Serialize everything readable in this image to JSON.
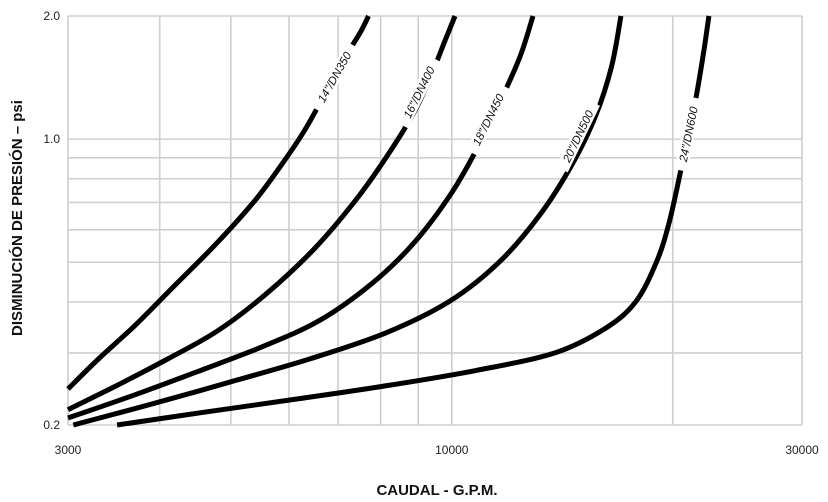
{
  "chart_data": {
    "type": "line",
    "xlabel": "CAUDAL - G.P.M.",
    "ylabel": "DISMINUCIÓN DE PRESIÓN – psi",
    "x_scale": "log",
    "y_scale": "log",
    "xlim": [
      3000,
      30000
    ],
    "ylim": [
      0.2,
      2.0
    ],
    "x_tick_labels": [
      "3000",
      "10000",
      "30000"
    ],
    "x_tick_values": [
      3000,
      10000,
      30000
    ],
    "y_tick_labels": [
      "0.2",
      "1.0",
      "2.0"
    ],
    "y_tick_values": [
      0.2,
      1.0,
      2.0
    ],
    "grid": true,
    "x_grid_values": [
      3000,
      4000,
      5000,
      6000,
      7000,
      8000,
      9000,
      10000,
      20000,
      30000
    ],
    "y_grid_values": [
      0.2,
      0.3,
      0.4,
      0.5,
      0.6,
      0.7,
      0.8,
      0.9,
      1.0,
      2.0
    ],
    "series": [
      {
        "name": "14\"/DN350",
        "x": [
          3000,
          3300,
          3700,
          4200,
          4800,
          5400,
          5900,
          6300,
          6700,
          7100,
          7500,
          7700
        ],
        "y": [
          0.245,
          0.29,
          0.35,
          0.44,
          0.56,
          0.71,
          0.88,
          1.05,
          1.28,
          1.55,
          1.82,
          2.0
        ]
      },
      {
        "name": "16\"/DN400",
        "x": [
          3000,
          3500,
          4100,
          4800,
          5600,
          6500,
          7400,
          8200,
          8900,
          9400,
          9800,
          10100
        ],
        "y": [
          0.218,
          0.25,
          0.29,
          0.34,
          0.42,
          0.54,
          0.71,
          0.92,
          1.17,
          1.45,
          1.75,
          2.0
        ]
      },
      {
        "name": "18\"/DN450",
        "x": [
          3000,
          3700,
          4500,
          5500,
          6600,
          7800,
          8900,
          10000,
          10900,
          11700,
          12400,
          12900
        ],
        "y": [
          0.208,
          0.237,
          0.27,
          0.31,
          0.36,
          0.445,
          0.56,
          0.74,
          0.97,
          1.26,
          1.6,
          2.0
        ]
      },
      {
        "name": "20\"/DN500",
        "x": [
          3050,
          3900,
          5000,
          6400,
          8100,
          9900,
          11600,
          13200,
          14600,
          15700,
          16500,
          17000
        ],
        "y": [
          0.2,
          0.225,
          0.255,
          0.29,
          0.335,
          0.4,
          0.5,
          0.655,
          0.87,
          1.14,
          1.5,
          2.0
        ]
      },
      {
        "name": "24\"/DN600",
        "x": [
          3500,
          4600,
          6200,
          8200,
          10800,
          13800,
          16200,
          17800,
          19000,
          19800,
          20600,
          21400,
          22000,
          22400
        ],
        "y": [
          0.2,
          0.215,
          0.232,
          0.25,
          0.272,
          0.3,
          0.345,
          0.4,
          0.5,
          0.63,
          0.87,
          1.2,
          1.6,
          2.0
        ]
      }
    ]
  }
}
